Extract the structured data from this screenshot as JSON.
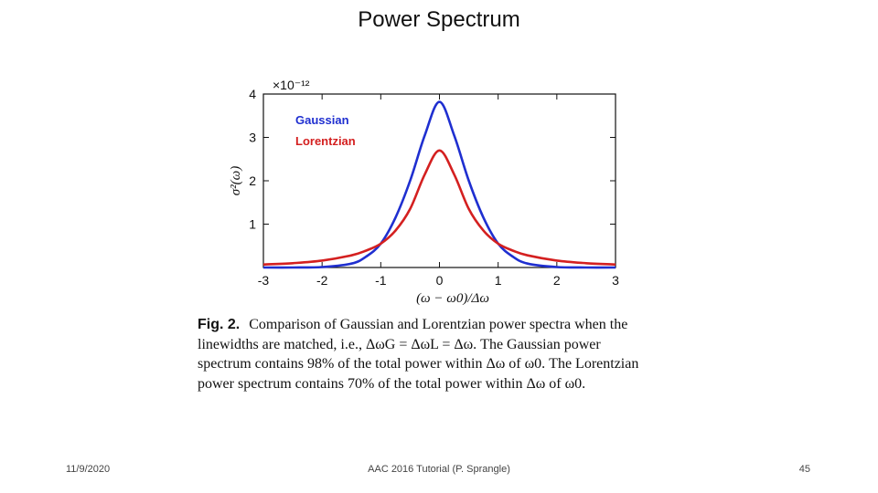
{
  "slide": {
    "title": "Power Spectrum",
    "footer_date": "11/9/2020",
    "footer_center": "AAC 2016 Tutorial (P. Sprangle)",
    "page_number": "45"
  },
  "caption": {
    "label": "Fig. 2.",
    "text": "Comparison of Gaussian and Lorentzian power spectra when the linewidths are matched, i.e., ΔωG = ΔωL = Δω. The Gaussian power spectrum contains 98% of the total power within Δω of ω0. The Lorentzian power spectrum contains 70% of the total power within Δω of ω0."
  },
  "colors": {
    "gaussian": "#1f2fd0",
    "lorentzian": "#d42020"
  },
  "chart_data": {
    "type": "line",
    "title": "",
    "xlabel": "(ω − ω0)/Δω",
    "ylabel": "σ²(ω)",
    "y_scale_label": "×10⁻¹²",
    "xlim": [
      -3,
      3
    ],
    "ylim": [
      0,
      4
    ],
    "xticks": [
      "-3",
      "-2",
      "-1",
      "0",
      "1",
      "2",
      "3"
    ],
    "yticks": [
      "1",
      "2",
      "3",
      "4"
    ],
    "legend_position": "top-left",
    "series": [
      {
        "name": "Gaussian",
        "color": "#1f2fd0",
        "x": [
          -3,
          -2.5,
          -2,
          -1.5,
          -1.25,
          -1,
          -0.75,
          -0.5,
          -0.25,
          0,
          0.25,
          0.5,
          0.75,
          1,
          1.25,
          1.5,
          2,
          2.5,
          3
        ],
        "y": [
          0,
          0,
          0.01,
          0.09,
          0.25,
          0.55,
          1.15,
          2.0,
          3.05,
          3.82,
          3.05,
          2.0,
          1.15,
          0.55,
          0.25,
          0.09,
          0.01,
          0,
          0
        ]
      },
      {
        "name": "Lorentzian",
        "color": "#d42020",
        "x": [
          -3,
          -2.5,
          -2,
          -1.5,
          -1.25,
          -1,
          -0.75,
          -0.5,
          -0.25,
          0,
          0.25,
          0.5,
          0.75,
          1,
          1.25,
          1.5,
          2,
          2.5,
          3
        ],
        "y": [
          0.07,
          0.1,
          0.16,
          0.28,
          0.39,
          0.55,
          0.85,
          1.35,
          2.15,
          2.7,
          2.15,
          1.35,
          0.85,
          0.55,
          0.39,
          0.28,
          0.16,
          0.1,
          0.07
        ]
      }
    ]
  }
}
